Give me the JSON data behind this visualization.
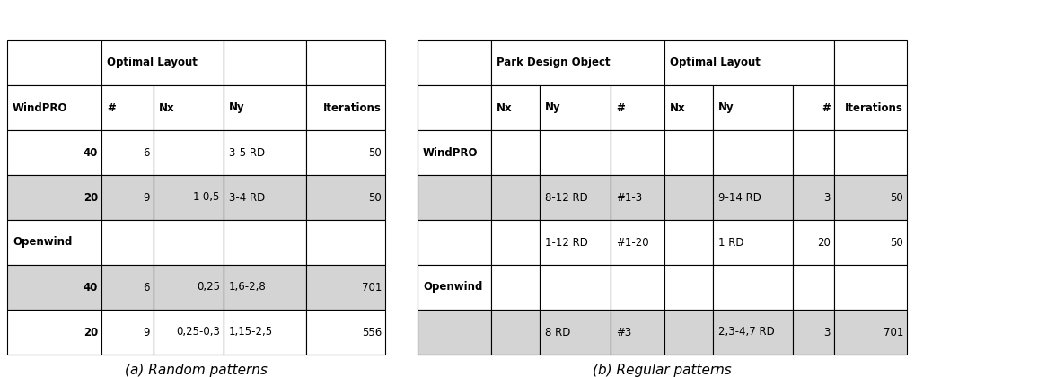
{
  "fig_width": 11.85,
  "fig_height": 4.2,
  "caption_a": "(a) Random patterns",
  "caption_b": "(b) Regular patterns",
  "table_a": {
    "header_row0_labels": [
      "",
      "Optimal Layout",
      "",
      ""
    ],
    "header_row0_spans": [
      1,
      2,
      1,
      1
    ],
    "header_row1": [
      "WindPRO",
      "#",
      "Nx",
      "Ny",
      "Iterations"
    ],
    "rows": [
      [
        "40",
        "6",
        "",
        "3-5 RD",
        "50"
      ],
      [
        "20",
        "9",
        "1-0,5",
        "3-4 RD",
        "50"
      ],
      [
        "Openwind",
        "",
        "",
        "",
        ""
      ],
      [
        "40",
        "6",
        "0,25",
        "1,6-2,8",
        "701"
      ],
      [
        "20",
        "9",
        "0,25-0,3",
        "1,15-2,5",
        "556"
      ]
    ],
    "shading": [
      "white",
      "gray",
      "white",
      "gray",
      "white"
    ]
  },
  "table_b": {
    "header_row0_labels": [
      "",
      "Park Design Object",
      "",
      "Optimal Layout",
      "",
      ""
    ],
    "header_row0_spans": [
      1,
      3,
      1,
      3,
      1,
      1
    ],
    "header_row1": [
      "",
      "Nx",
      "Ny",
      "#",
      "Nx",
      "Ny",
      "#",
      "Iterations"
    ],
    "rows": [
      [
        "WindPRO",
        "",
        "",
        "",
        "",
        "",
        "",
        ""
      ],
      [
        "",
        "",
        "8-12 RD",
        "#1-3",
        "",
        "9-14 RD",
        "3",
        "50"
      ],
      [
        "",
        "",
        "1-12 RD",
        "#1-20",
        "",
        "1 RD",
        "20",
        "50"
      ],
      [
        "Openwind",
        "",
        "",
        "",
        "",
        "",
        "",
        ""
      ],
      [
        "",
        "",
        "8 RD",
        "#3",
        "",
        "2,3-4,7 RD",
        "3",
        "701"
      ]
    ],
    "shading": [
      "white",
      "gray",
      "white",
      "white",
      "gray"
    ]
  },
  "colors": {
    "gray": "#d4d4d4",
    "white": "#ffffff",
    "border": "#000000",
    "text": "#000000"
  },
  "font_header": 8.5,
  "font_cell": 8.5,
  "font_caption": 11
}
